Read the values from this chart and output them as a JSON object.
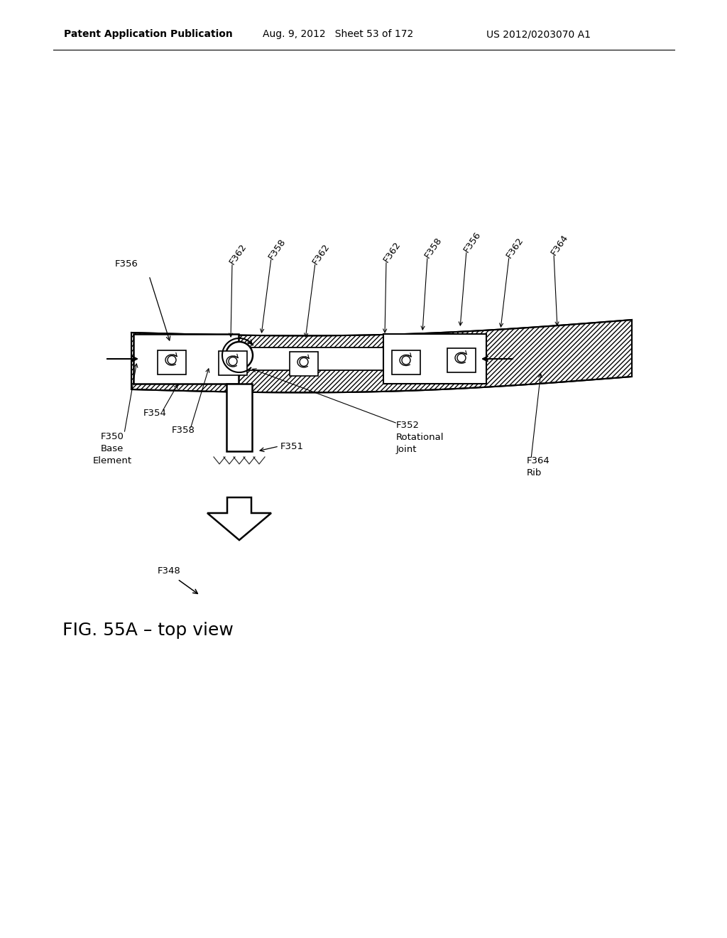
{
  "header_left": "Patent Application Publication",
  "header_mid": "Aug. 9, 2012   Sheet 53 of 172",
  "header_right": "US 2012/0203070 A1",
  "fig_label": "FIG. 55A – top view",
  "background": "#ffffff",
  "label_fontsize": 9.5,
  "top_labels": [
    [
      "F362",
      335,
      375,
      325,
      478
    ],
    [
      "F358",
      390,
      368,
      368,
      472
    ],
    [
      "F362",
      452,
      375,
      430,
      478
    ],
    [
      "F362",
      552,
      372,
      542,
      472
    ],
    [
      "F358",
      610,
      366,
      595,
      468
    ],
    [
      "F356",
      665,
      358,
      648,
      462
    ],
    [
      "F362",
      725,
      366,
      705,
      464
    ],
    [
      "F364",
      788,
      362,
      785,
      462
    ]
  ]
}
